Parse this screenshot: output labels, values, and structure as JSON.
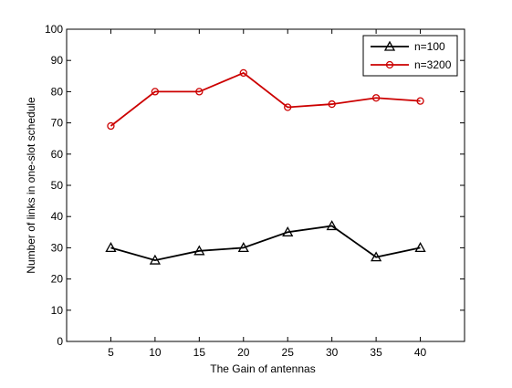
{
  "chart_data": {
    "type": "line",
    "title": "",
    "xlabel": "The Gain of antennas",
    "ylabel": "Number of links in one-slot schedule",
    "xlim": [
      0,
      45
    ],
    "ylim": [
      0,
      100
    ],
    "xticks": [
      5,
      10,
      15,
      20,
      25,
      30,
      35,
      40
    ],
    "yticks": [
      0,
      10,
      20,
      30,
      40,
      50,
      60,
      70,
      80,
      90,
      100
    ],
    "grid": false,
    "legend_position": "top-right",
    "x": [
      5,
      10,
      15,
      20,
      25,
      30,
      35,
      40
    ],
    "series": [
      {
        "name": "n=100",
        "color": "#000000",
        "marker": "triangle",
        "values": [
          30,
          26,
          29,
          30,
          35,
          37,
          27,
          30
        ]
      },
      {
        "name": "n=3200",
        "color": "#cc0000",
        "marker": "circle",
        "values": [
          69,
          80,
          80,
          86,
          75,
          76,
          78,
          77
        ]
      }
    ]
  }
}
